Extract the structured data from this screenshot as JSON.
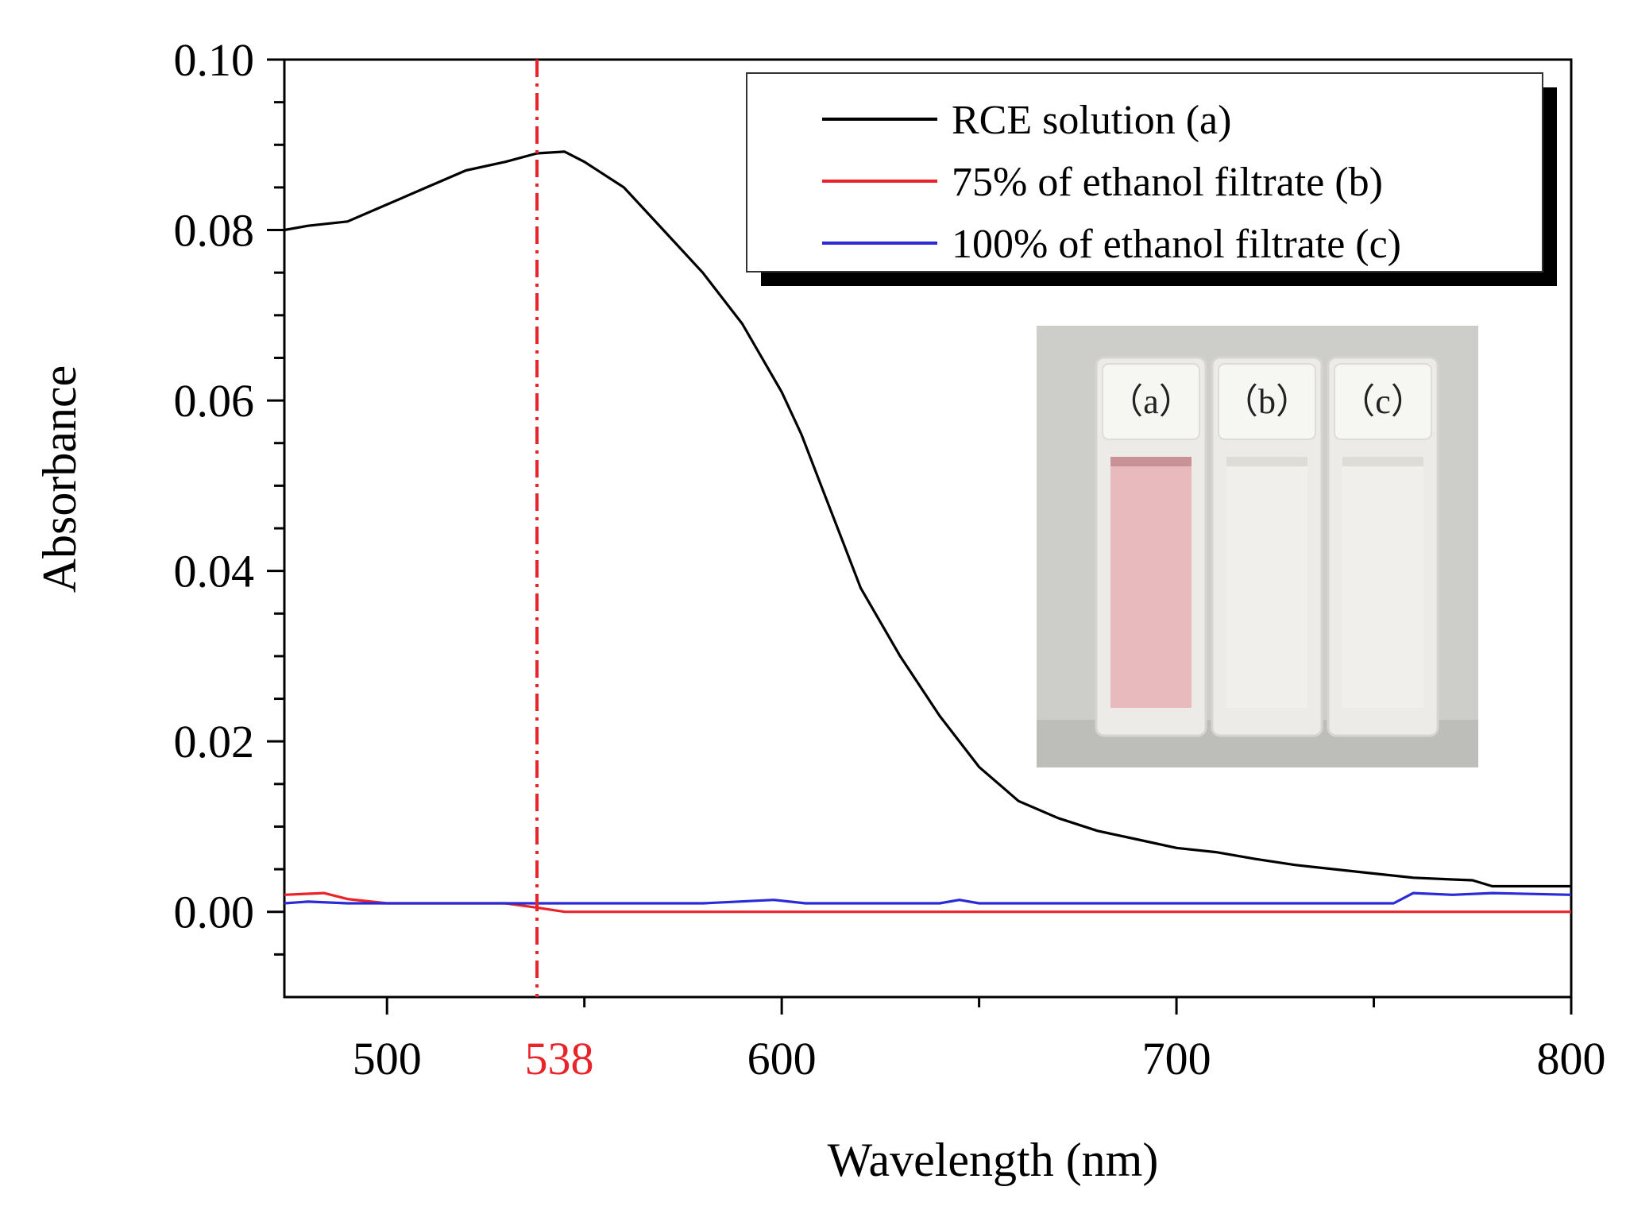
{
  "chart_data": {
    "type": "line",
    "title": "",
    "xlabel": "Wavelength (nm)",
    "ylabel": "Absorbance",
    "xlim": [
      474,
      800
    ],
    "ylim": [
      -0.01,
      0.1
    ],
    "x_ticks": [
      500,
      600,
      700,
      800
    ],
    "y_ticks": [
      0.0,
      0.02,
      0.04,
      0.06,
      0.08,
      0.1
    ],
    "y_tick_labels": [
      "0.00",
      "0.02",
      "0.04",
      "0.06",
      "0.08",
      "0.10"
    ],
    "grid": false,
    "legend_position": "top-right",
    "annotation": {
      "type": "vertical-line",
      "x": 538,
      "label": "538",
      "color": "#e8232a"
    },
    "series": [
      {
        "name": "RCE solution (a)",
        "color": "#000000",
        "points": [
          [
            474,
            0.08
          ],
          [
            480,
            0.0805
          ],
          [
            490,
            0.081
          ],
          [
            500,
            0.083
          ],
          [
            510,
            0.085
          ],
          [
            520,
            0.087
          ],
          [
            530,
            0.088
          ],
          [
            538,
            0.089
          ],
          [
            545,
            0.0892
          ],
          [
            550,
            0.088
          ],
          [
            560,
            0.085
          ],
          [
            570,
            0.08
          ],
          [
            580,
            0.075
          ],
          [
            590,
            0.069
          ],
          [
            600,
            0.061
          ],
          [
            605,
            0.056
          ],
          [
            610,
            0.05
          ],
          [
            615,
            0.044
          ],
          [
            620,
            0.038
          ],
          [
            630,
            0.03
          ],
          [
            640,
            0.023
          ],
          [
            650,
            0.017
          ],
          [
            660,
            0.013
          ],
          [
            670,
            0.011
          ],
          [
            680,
            0.0095
          ],
          [
            690,
            0.0085
          ],
          [
            700,
            0.0075
          ],
          [
            710,
            0.007
          ],
          [
            720,
            0.0062
          ],
          [
            730,
            0.0055
          ],
          [
            740,
            0.005
          ],
          [
            750,
            0.0045
          ],
          [
            760,
            0.004
          ],
          [
            770,
            0.0038
          ],
          [
            775,
            0.0037
          ],
          [
            780,
            0.003
          ],
          [
            790,
            0.003
          ],
          [
            800,
            0.003
          ]
        ]
      },
      {
        "name": "75% of ethanol filtrate (b)",
        "color": "#e8232a",
        "points": [
          [
            474,
            0.002
          ],
          [
            484,
            0.0022
          ],
          [
            490,
            0.0015
          ],
          [
            500,
            0.001
          ],
          [
            510,
            0.001
          ],
          [
            520,
            0.001
          ],
          [
            530,
            0.001
          ],
          [
            538,
            0.0005
          ],
          [
            545,
            0.0
          ],
          [
            600,
            0.0
          ],
          [
            700,
            0.0
          ],
          [
            800,
            0.0
          ]
        ]
      },
      {
        "name": "100% of ethanol filtrate (c)",
        "color": "#2a2ad8",
        "points": [
          [
            474,
            0.001
          ],
          [
            480,
            0.0012
          ],
          [
            490,
            0.001
          ],
          [
            500,
            0.001
          ],
          [
            520,
            0.001
          ],
          [
            540,
            0.001
          ],
          [
            560,
            0.001
          ],
          [
            580,
            0.001
          ],
          [
            598,
            0.0014
          ],
          [
            606,
            0.001
          ],
          [
            640,
            0.001
          ],
          [
            645,
            0.0014
          ],
          [
            650,
            0.001
          ],
          [
            700,
            0.001
          ],
          [
            720,
            0.001
          ],
          [
            755,
            0.001
          ],
          [
            760,
            0.0022
          ],
          [
            770,
            0.002
          ],
          [
            780,
            0.0022
          ],
          [
            800,
            0.002
          ]
        ]
      }
    ],
    "inset": {
      "content": "photo of three cuvettes",
      "vials": [
        {
          "label": "（a）",
          "liquid_color": "#e8b9bd"
        },
        {
          "label": "（b）",
          "liquid_color": "#f0efeb"
        },
        {
          "label": "（c）",
          "liquid_color": "#f0efeb"
        }
      ]
    }
  }
}
